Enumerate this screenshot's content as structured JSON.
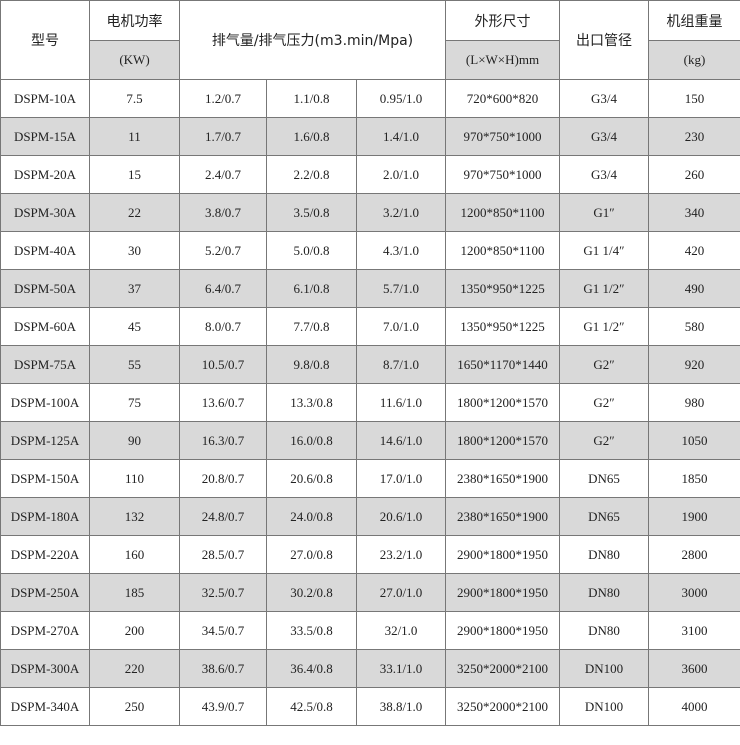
{
  "header": {
    "model": "型号",
    "power": "电机功率",
    "power_unit": "(KW)",
    "flow": "排气量/排气压力(m3.min/Mpa)",
    "size": "外形尺寸",
    "size_unit": "(L×W×H)mm",
    "outlet": "出口管径",
    "weight": "机组重量",
    "weight_unit": "(kg)"
  },
  "table": {
    "rows": [
      [
        "DSPM-10A",
        7.5,
        "1.2/0.7",
        "1.1/0.8",
        "0.95/1.0",
        "720*600*820",
        "G3/4",
        150
      ],
      [
        "DSPM-15A",
        11,
        "1.7/0.7",
        "1.6/0.8",
        "1.4/1.0",
        "970*750*1000",
        "G3/4",
        230
      ],
      [
        "DSPM-20A",
        15,
        "2.4/0.7",
        "2.2/0.8",
        "2.0/1.0",
        "970*750*1000",
        "G3/4",
        260
      ],
      [
        "DSPM-30A",
        22,
        "3.8/0.7",
        "3.5/0.8",
        "3.2/1.0",
        "1200*850*1100",
        "G1″",
        340
      ],
      [
        "DSPM-40A",
        30,
        "5.2/0.7",
        "5.0/0.8",
        "4.3/1.0",
        "1200*850*1100",
        "G1 1/4″",
        420
      ],
      [
        "DSPM-50A",
        37,
        "6.4/0.7",
        "6.1/0.8",
        "5.7/1.0",
        "1350*950*1225",
        "G1 1/2″",
        490
      ],
      [
        "DSPM-60A",
        45,
        "8.0/0.7",
        "7.7/0.8",
        "7.0/1.0",
        "1350*950*1225",
        "G1 1/2″",
        580
      ],
      [
        "DSPM-75A",
        55,
        "10.5/0.7",
        "9.8/0.8",
        "8.7/1.0",
        "1650*1170*1440",
        "G2″",
        920
      ],
      [
        "DSPM-100A",
        75,
        "13.6/0.7",
        "13.3/0.8",
        "11.6/1.0",
        "1800*1200*1570",
        "G2″",
        980
      ],
      [
        "DSPM-125A",
        90,
        "16.3/0.7",
        "16.0/0.8",
        "14.6/1.0",
        "1800*1200*1570",
        "G2″",
        1050
      ],
      [
        "DSPM-150A",
        110,
        "20.8/0.7",
        "20.6/0.8",
        "17.0/1.0",
        "2380*1650*1900",
        "DN65",
        1850
      ],
      [
        "DSPM-180A",
        132,
        "24.8/0.7",
        "24.0/0.8",
        "20.6/1.0",
        "2380*1650*1900",
        "DN65",
        1900
      ],
      [
        "DSPM-220A",
        160,
        "28.5/0.7",
        "27.0/0.8",
        "23.2/1.0",
        "2900*1800*1950",
        "DN80",
        2800
      ],
      [
        "DSPM-250A",
        185,
        "32.5/0.7",
        "30.2/0.8",
        "27.0/1.0",
        "2900*1800*1950",
        "DN80",
        3000
      ],
      [
        "DSPM-270A",
        200,
        "34.5/0.7",
        "33.5/0.8",
        "32/1.0",
        "2900*1800*1950",
        "DN80",
        3100
      ],
      [
        "DSPM-300A",
        220,
        "38.6/0.7",
        "36.4/0.8",
        "33.1/1.0",
        "3250*2000*2100",
        "DN100",
        3600
      ],
      [
        "DSPM-340A",
        250,
        "43.9/0.7",
        "42.5/0.8",
        "38.8/1.0",
        "3250*2000*2100",
        "DN100",
        4000
      ]
    ]
  }
}
